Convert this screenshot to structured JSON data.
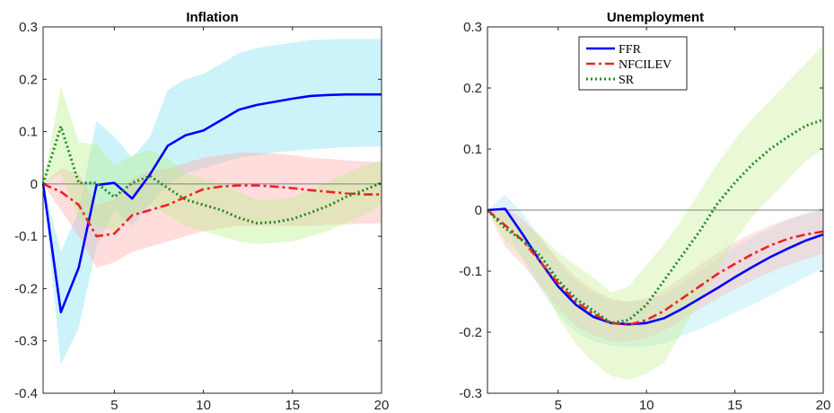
{
  "chart_data": [
    {
      "type": "line",
      "title": "Inflation",
      "xlabel": "",
      "ylabel": "",
      "xlim": [
        1,
        20
      ],
      "ylim": [
        -0.4,
        0.3
      ],
      "xticks": [
        5,
        10,
        15,
        20
      ],
      "yticks": [
        -0.4,
        -0.3,
        -0.2,
        -0.1,
        0,
        0.1,
        0.2,
        0.3
      ],
      "ytick_labels": [
        "-0.4",
        "-0.3",
        "-0.2",
        "-0.1",
        "0",
        "0.1",
        "0.2",
        "0.3"
      ],
      "xtick_labels": [
        "5",
        "10",
        "15",
        "20"
      ],
      "zero_line": true,
      "grid": false,
      "x": [
        1,
        2,
        3,
        4,
        5,
        6,
        7,
        8,
        9,
        10,
        11,
        12,
        13,
        14,
        15,
        16,
        17,
        18,
        19,
        20
      ],
      "series": [
        {
          "name": "FFR",
          "color": "#0000ff",
          "style": "solid",
          "values": [
            0,
            -0.245,
            -0.16,
            -0.002,
            0.002,
            -0.028,
            0.018,
            0.073,
            0.093,
            0.102,
            0.122,
            0.142,
            0.151,
            0.157,
            0.163,
            0.168,
            0.17,
            0.171,
            0.171,
            0.171
          ],
          "band_color": "#80e0f0",
          "lower": [
            0,
            -0.345,
            -0.275,
            -0.12,
            -0.05,
            -0.08,
            -0.04,
            0,
            0.02,
            0.03,
            0.04,
            0.05,
            0.055,
            0.06,
            0.063,
            0.066,
            0.068,
            0.07,
            0.071,
            0.072
          ],
          "upper": [
            0,
            -0.13,
            -0.05,
            0.12,
            0.09,
            0.05,
            0.09,
            0.18,
            0.2,
            0.21,
            0.23,
            0.25,
            0.26,
            0.265,
            0.27,
            0.275,
            0.276,
            0.277,
            0.277,
            0.277
          ]
        },
        {
          "name": "NFCILEV",
          "color": "#ee2222",
          "style": "dashdot",
          "values": [
            0,
            -0.015,
            -0.04,
            -0.1,
            -0.095,
            -0.06,
            -0.05,
            -0.04,
            -0.025,
            -0.01,
            -0.005,
            -0.003,
            -0.003,
            -0.005,
            -0.008,
            -0.012,
            -0.015,
            -0.018,
            -0.02,
            -0.02
          ],
          "band_color": "#ffaaaa",
          "lower": [
            0,
            -0.05,
            -0.1,
            -0.16,
            -0.15,
            -0.13,
            -0.12,
            -0.11,
            -0.1,
            -0.09,
            -0.085,
            -0.08,
            -0.08,
            -0.08,
            -0.08,
            -0.08,
            -0.078,
            -0.077,
            -0.076,
            -0.075
          ],
          "upper": [
            0,
            0.03,
            0.02,
            -0.04,
            -0.03,
            0.01,
            0.025,
            0.03,
            0.04,
            0.05,
            0.055,
            0.06,
            0.06,
            0.058,
            0.055,
            0.05,
            0.048,
            0.045,
            0.043,
            0.042
          ]
        },
        {
          "name": "SR",
          "color": "#228b22",
          "style": "dotted",
          "values": [
            0,
            0.11,
            0.002,
            0.002,
            -0.025,
            0.002,
            0.015,
            -0.008,
            -0.03,
            -0.04,
            -0.05,
            -0.065,
            -0.075,
            -0.073,
            -0.067,
            -0.055,
            -0.042,
            -0.025,
            -0.012,
            0.002
          ],
          "band_color": "#b8f08a",
          "lower": [
            0,
            0.02,
            -0.07,
            -0.08,
            -0.09,
            -0.06,
            -0.04,
            -0.06,
            -0.08,
            -0.09,
            -0.1,
            -0.11,
            -0.115,
            -0.112,
            -0.11,
            -0.1,
            -0.09,
            -0.075,
            -0.06,
            -0.04
          ],
          "upper": [
            0,
            0.185,
            0.08,
            0.075,
            0.035,
            0.055,
            0.065,
            0.05,
            0.02,
            0.01,
            0,
            -0.015,
            -0.03,
            -0.03,
            -0.025,
            -0.01,
            0.005,
            0.02,
            0.035,
            0.045
          ]
        }
      ]
    },
    {
      "type": "line",
      "title": "Unemployment",
      "xlabel": "",
      "ylabel": "",
      "xlim": [
        1,
        20
      ],
      "ylim": [
        -0.3,
        0.3
      ],
      "xticks": [
        5,
        10,
        15,
        20
      ],
      "yticks": [
        -0.3,
        -0.2,
        -0.1,
        0,
        0.1,
        0.2,
        0.3
      ],
      "ytick_labels": [
        "-0.3",
        "-0.2",
        "-0.1",
        "0",
        "0.1",
        "0.2",
        "0.3"
      ],
      "xtick_labels": [
        "5",
        "10",
        "15",
        "20"
      ],
      "zero_line": true,
      "grid": false,
      "legend": {
        "placement": "top-center",
        "entries": [
          "FFR",
          "NFCILEV",
          "SR"
        ]
      },
      "x": [
        1,
        2,
        3,
        4,
        5,
        6,
        7,
        8,
        9,
        10,
        11,
        12,
        13,
        14,
        15,
        16,
        17,
        18,
        19,
        20
      ],
      "series": [
        {
          "name": "FFR",
          "color": "#0000ff",
          "style": "solid",
          "values": [
            0,
            0.002,
            -0.04,
            -0.085,
            -0.125,
            -0.155,
            -0.175,
            -0.185,
            -0.187,
            -0.185,
            -0.177,
            -0.162,
            -0.145,
            -0.128,
            -0.11,
            -0.093,
            -0.077,
            -0.063,
            -0.05,
            -0.04
          ],
          "band_color": "#a8e8f5",
          "lower": [
            0,
            -0.03,
            -0.08,
            -0.13,
            -0.17,
            -0.2,
            -0.215,
            -0.222,
            -0.225,
            -0.224,
            -0.218,
            -0.207,
            -0.195,
            -0.182,
            -0.168,
            -0.155,
            -0.14,
            -0.125,
            -0.11,
            -0.095
          ],
          "upper": [
            0,
            0.025,
            -0.005,
            -0.045,
            -0.085,
            -0.115,
            -0.135,
            -0.148,
            -0.15,
            -0.148,
            -0.138,
            -0.12,
            -0.1,
            -0.08,
            -0.06,
            -0.045,
            -0.03,
            -0.015,
            -0.005,
            0.005
          ]
        },
        {
          "name": "NFCILEV",
          "color": "#ee2222",
          "style": "dashdot",
          "values": [
            0,
            -0.025,
            -0.05,
            -0.085,
            -0.12,
            -0.15,
            -0.17,
            -0.185,
            -0.188,
            -0.18,
            -0.165,
            -0.145,
            -0.125,
            -0.105,
            -0.088,
            -0.072,
            -0.058,
            -0.047,
            -0.04,
            -0.035
          ],
          "band_color": "#ffb8b8",
          "lower": [
            0,
            -0.06,
            -0.09,
            -0.125,
            -0.16,
            -0.19,
            -0.205,
            -0.215,
            -0.215,
            -0.21,
            -0.197,
            -0.18,
            -0.162,
            -0.145,
            -0.13,
            -0.115,
            -0.102,
            -0.09,
            -0.08,
            -0.072
          ],
          "upper": [
            0,
            0.005,
            -0.015,
            -0.045,
            -0.08,
            -0.11,
            -0.13,
            -0.145,
            -0.15,
            -0.145,
            -0.13,
            -0.11,
            -0.09,
            -0.07,
            -0.052,
            -0.038,
            -0.025,
            -0.015,
            -0.007,
            0
          ]
        },
        {
          "name": "SR",
          "color": "#228b22",
          "style": "dotted",
          "values": [
            0,
            -0.03,
            -0.05,
            -0.075,
            -0.115,
            -0.145,
            -0.165,
            -0.185,
            -0.18,
            -0.155,
            -0.115,
            -0.075,
            -0.035,
            0.01,
            0.045,
            0.075,
            0.1,
            0.12,
            0.138,
            0.148
          ],
          "band_color": "#c8f098",
          "lower": [
            0,
            -0.05,
            -0.08,
            -0.12,
            -0.175,
            -0.22,
            -0.25,
            -0.272,
            -0.278,
            -0.268,
            -0.25,
            -0.2,
            -0.15,
            -0.1,
            -0.05,
            -0.01,
            0.02,
            0.05,
            0.08,
            0.1
          ],
          "upper": [
            0,
            -0.005,
            -0.025,
            -0.04,
            -0.07,
            -0.09,
            -0.11,
            -0.135,
            -0.125,
            -0.09,
            -0.055,
            -0.015,
            0.03,
            0.075,
            0.115,
            0.15,
            0.18,
            0.21,
            0.24,
            0.27
          ]
        }
      ]
    }
  ]
}
